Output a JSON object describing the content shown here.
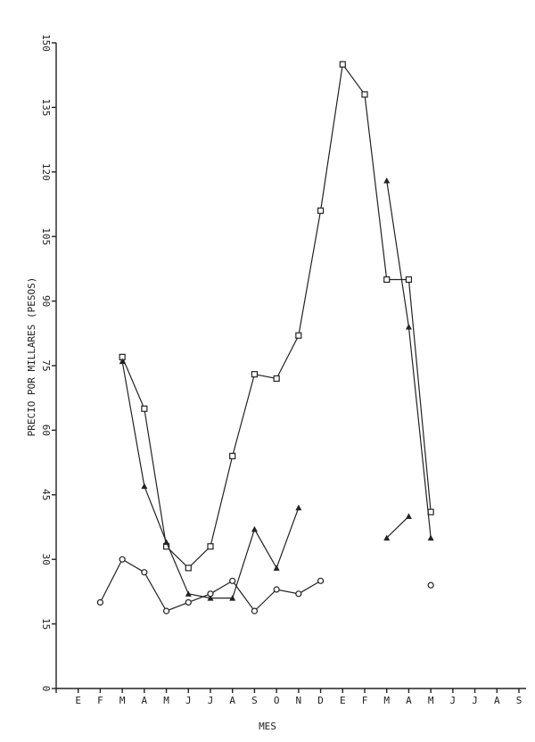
{
  "chart_data": {
    "type": "line",
    "y_label": "PRECIO POR MILLARES (PESOS)",
    "x_label": "MES",
    "categories": [
      null,
      "E",
      "F",
      "M",
      "A",
      "M",
      "J",
      "J",
      "A",
      "S",
      "O",
      "N",
      "D",
      "E",
      "F",
      "M",
      "A",
      "M",
      "J",
      "J",
      "A",
      "S"
    ],
    "series": [
      {
        "color": "#222",
        "marker": "square",
        "values": [
          null,
          null,
          null,
          77,
          65,
          33,
          28,
          33,
          54,
          73,
          72,
          82,
          111,
          145,
          138,
          95,
          95,
          41,
          null,
          null,
          null,
          null
        ]
      },
      {
        "color": "#222",
        "marker": "triangle",
        "values": [
          null,
          null,
          null,
          76,
          47,
          34,
          22,
          21,
          21,
          37,
          28,
          42,
          null,
          null,
          null,
          35,
          40,
          null,
          null,
          null,
          null,
          null
        ]
      },
      {
        "color": "#222",
        "marker": "triangle",
        "values": [
          null,
          null,
          null,
          null,
          null,
          null,
          null,
          null,
          null,
          null,
          null,
          null,
          null,
          null,
          null,
          118,
          84,
          35,
          null,
          null,
          null,
          null
        ]
      },
      {
        "color": "#222",
        "marker": "circle",
        "values": [
          null,
          null,
          20,
          30,
          27,
          18,
          20,
          22,
          25,
          18,
          23,
          22,
          25,
          null,
          null,
          null,
          null,
          24,
          null,
          null,
          null,
          null
        ]
      }
    ],
    "ylim": [
      0,
      150
    ],
    "yticks": [
      0,
      15,
      30,
      45,
      60,
      75,
      90,
      105,
      120,
      135,
      150
    ]
  }
}
